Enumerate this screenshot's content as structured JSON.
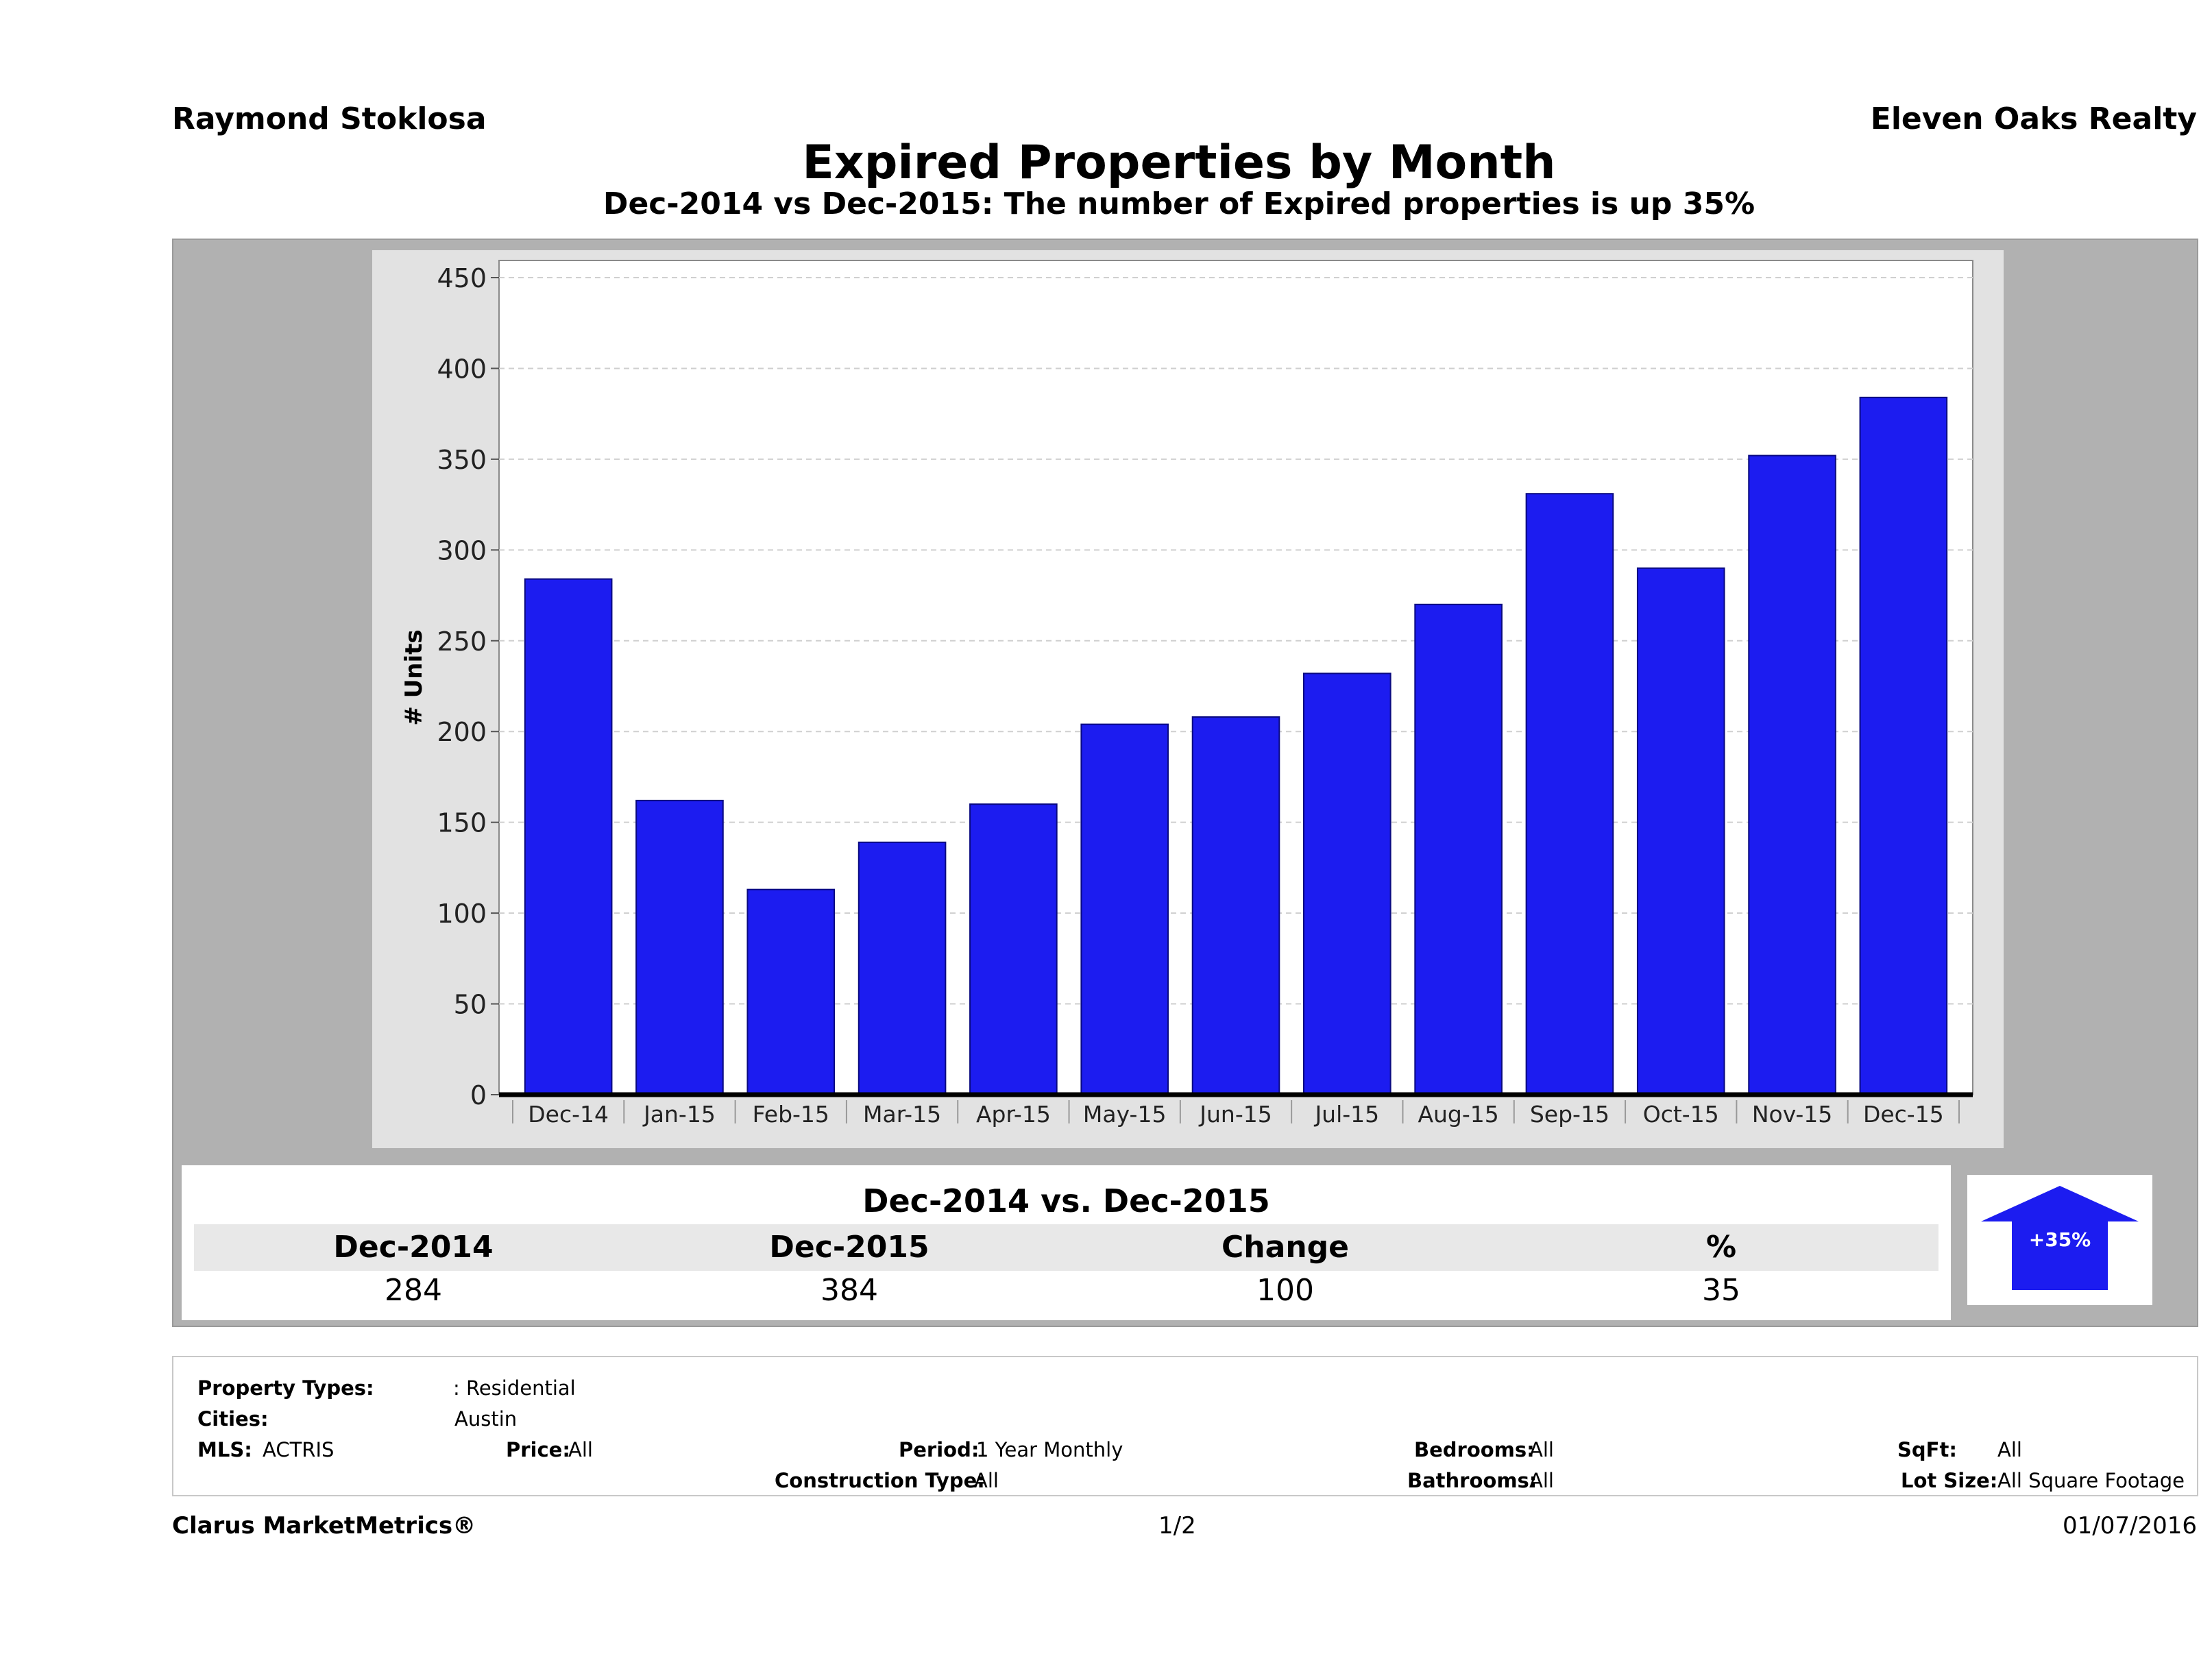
{
  "header": {
    "agent": "Raymond Stoklosa",
    "brokerage": "Eleven Oaks Realty"
  },
  "chart_data": {
    "type": "bar",
    "title": "Expired Properties by Month",
    "subtitle": "Dec-2014 vs Dec-2015: The number of Expired   properties is up 35%",
    "xlabel": "",
    "ylabel": "# Units",
    "categories": [
      "Dec-14",
      "Jan-15",
      "Feb-15",
      "Mar-15",
      "Apr-15",
      "May-15",
      "Jun-15",
      "Jul-15",
      "Aug-15",
      "Sep-15",
      "Oct-15",
      "Nov-15",
      "Dec-15"
    ],
    "values": [
      284,
      162,
      113,
      139,
      160,
      204,
      208,
      232,
      270,
      331,
      290,
      352,
      384
    ],
    "ylim": [
      0,
      450
    ],
    "yticks": [
      0,
      50,
      100,
      150,
      200,
      250,
      300,
      350,
      400,
      450
    ],
    "grid": true,
    "bar_color": "#1c1cf0"
  },
  "comparison": {
    "heading": "Dec-2014 vs. Dec-2015",
    "columns": [
      "Dec-2014",
      "Dec-2015",
      "Change",
      "%"
    ],
    "values": [
      "284",
      "384",
      "100",
      "35"
    ],
    "badge": "+35%",
    "badge_color": "#1c1cf0"
  },
  "filters": {
    "property_types_label": "Property Types:",
    "property_types_value": ": Residential",
    "cities_label": "Cities:",
    "cities_value": "Austin",
    "mls_label": "MLS:",
    "mls_value": "ACTRIS",
    "price_label": "Price:",
    "price_value": "All",
    "period_label": "Period:",
    "period_value": "1 Year Monthly",
    "construction_label": "Construction Type:",
    "construction_value": "All",
    "bedrooms_label": "Bedrooms:",
    "bedrooms_value": "All",
    "bathrooms_label": "Bathrooms:",
    "bathrooms_value": "All",
    "sqft_label": "SqFt:",
    "sqft_value": "All",
    "lotsize_label": "Lot Size:",
    "lotsize_value": "All Square Footage"
  },
  "footer": {
    "brand": "Clarus MarketMetrics®",
    "page": "1/2",
    "date": "01/07/2016"
  }
}
